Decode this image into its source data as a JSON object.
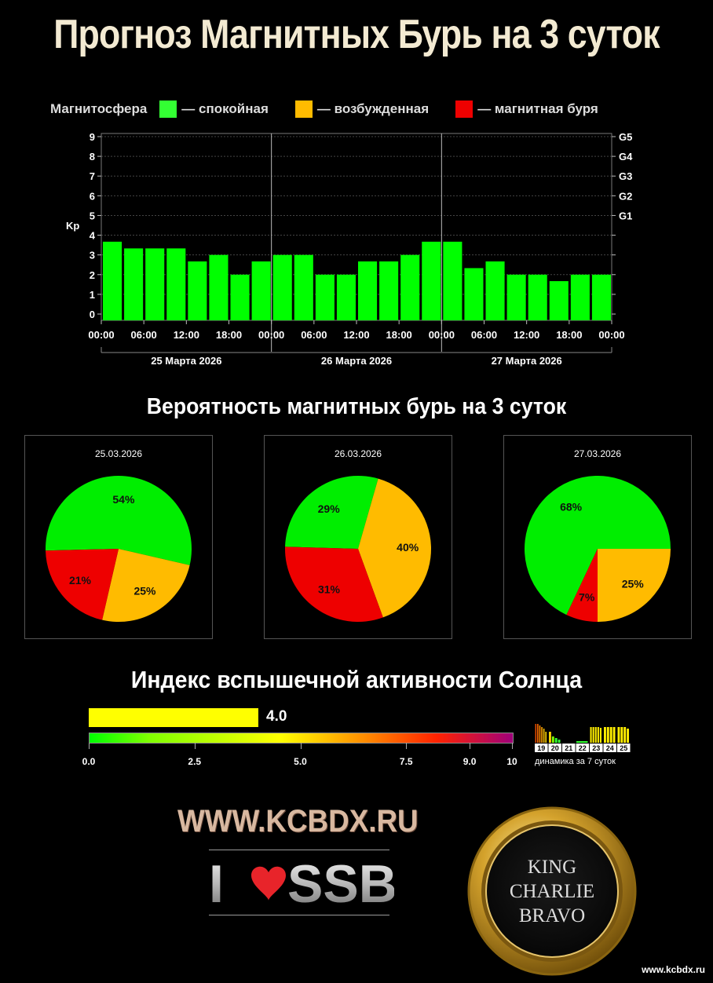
{
  "title": "Прогноз Магнитных Бурь на 3 суток",
  "legend": {
    "label": "Магнитосфера",
    "items": [
      {
        "text": "— спокойная",
        "color": "#33ff33"
      },
      {
        "text": "— возбужденная",
        "color": "#ffbb00"
      },
      {
        "text": "— магнитная буря",
        "color": "#ee0000"
      }
    ]
  },
  "chart_data": [
    {
      "type": "bar",
      "ylabel": "Kp",
      "ylim": [
        0,
        9
      ],
      "yticks": [
        0,
        1,
        2,
        3,
        4,
        5,
        6,
        7,
        8,
        9
      ],
      "right_ticks": [
        {
          "y": 5,
          "label": "G1"
        },
        {
          "y": 6,
          "label": "G2"
        },
        {
          "y": 7,
          "label": "G3"
        },
        {
          "y": 8,
          "label": "G4"
        },
        {
          "y": 9,
          "label": "G5"
        }
      ],
      "grid": true,
      "x_tick_labels": [
        "00:00",
        "06:00",
        "12:00",
        "18:00",
        "00:00",
        "06:00",
        "12:00",
        "18:00",
        "00:00",
        "06:00",
        "12:00",
        "18:00",
        "00:00"
      ],
      "days": [
        "25 Марта 2026",
        "26 Марта 2026",
        "27 Марта 2026"
      ],
      "bar_color": "#00ff00",
      "values": [
        3.67,
        3.33,
        3.33,
        3.33,
        2.67,
        3.0,
        2.0,
        2.67,
        3.0,
        3.0,
        2.0,
        2.0,
        2.67,
        2.67,
        3.0,
        3.67,
        3.67,
        2.33,
        2.67,
        2.0,
        2.0,
        1.67,
        2.0,
        2.0
      ]
    },
    {
      "type": "pie",
      "title": "25.03.2026",
      "slices": [
        {
          "label": "54%",
          "value": 54,
          "color": "#00ee00"
        },
        {
          "label": "25%",
          "value": 25,
          "color": "#ffbb00"
        },
        {
          "label": "21%",
          "value": 21,
          "color": "#ee0000"
        }
      ]
    },
    {
      "type": "pie",
      "title": "26.03.2026",
      "slices": [
        {
          "label": "29%",
          "value": 29,
          "color": "#00ee00"
        },
        {
          "label": "40%",
          "value": 40,
          "color": "#ffbb00"
        },
        {
          "label": "31%",
          "value": 31,
          "color": "#ee0000"
        }
      ]
    },
    {
      "type": "pie",
      "title": "27.03.2026",
      "slices": [
        {
          "label": "68%",
          "value": 68,
          "color": "#00ee00"
        },
        {
          "label": "25%",
          "value": 25,
          "color": "#ffbb00"
        },
        {
          "label": "7%",
          "value": 7,
          "color": "#ee0000"
        }
      ]
    }
  ],
  "probability_title": "Вероятность магнитных бурь на 3 суток",
  "flare": {
    "title": "Индекс вспышечной активности Солнца",
    "value": 4.0,
    "value_text": "4.0",
    "scale_max": 10,
    "scale_ticks": [
      {
        "v": 0,
        "label": "0.0"
      },
      {
        "v": 2.5,
        "label": "2.5"
      },
      {
        "v": 5,
        "label": "5.0"
      },
      {
        "v": 7.5,
        "label": "7.5"
      },
      {
        "v": 9,
        "label": "9.0"
      },
      {
        "v": 10,
        "label": "10"
      }
    ],
    "dynamics": {
      "label": "динамика за 7 суток",
      "days": [
        "19",
        "20",
        "21",
        "22",
        "23",
        "24",
        "25"
      ]
    }
  },
  "branding": {
    "site": "WWW.KCBDX.RU",
    "ssb_prefix": "I",
    "ssb_text": "SSB",
    "seal_lines": [
      "KING",
      "CHARLIE",
      "BRAVO"
    ],
    "footer_url": "www.kcbdx.ru"
  }
}
